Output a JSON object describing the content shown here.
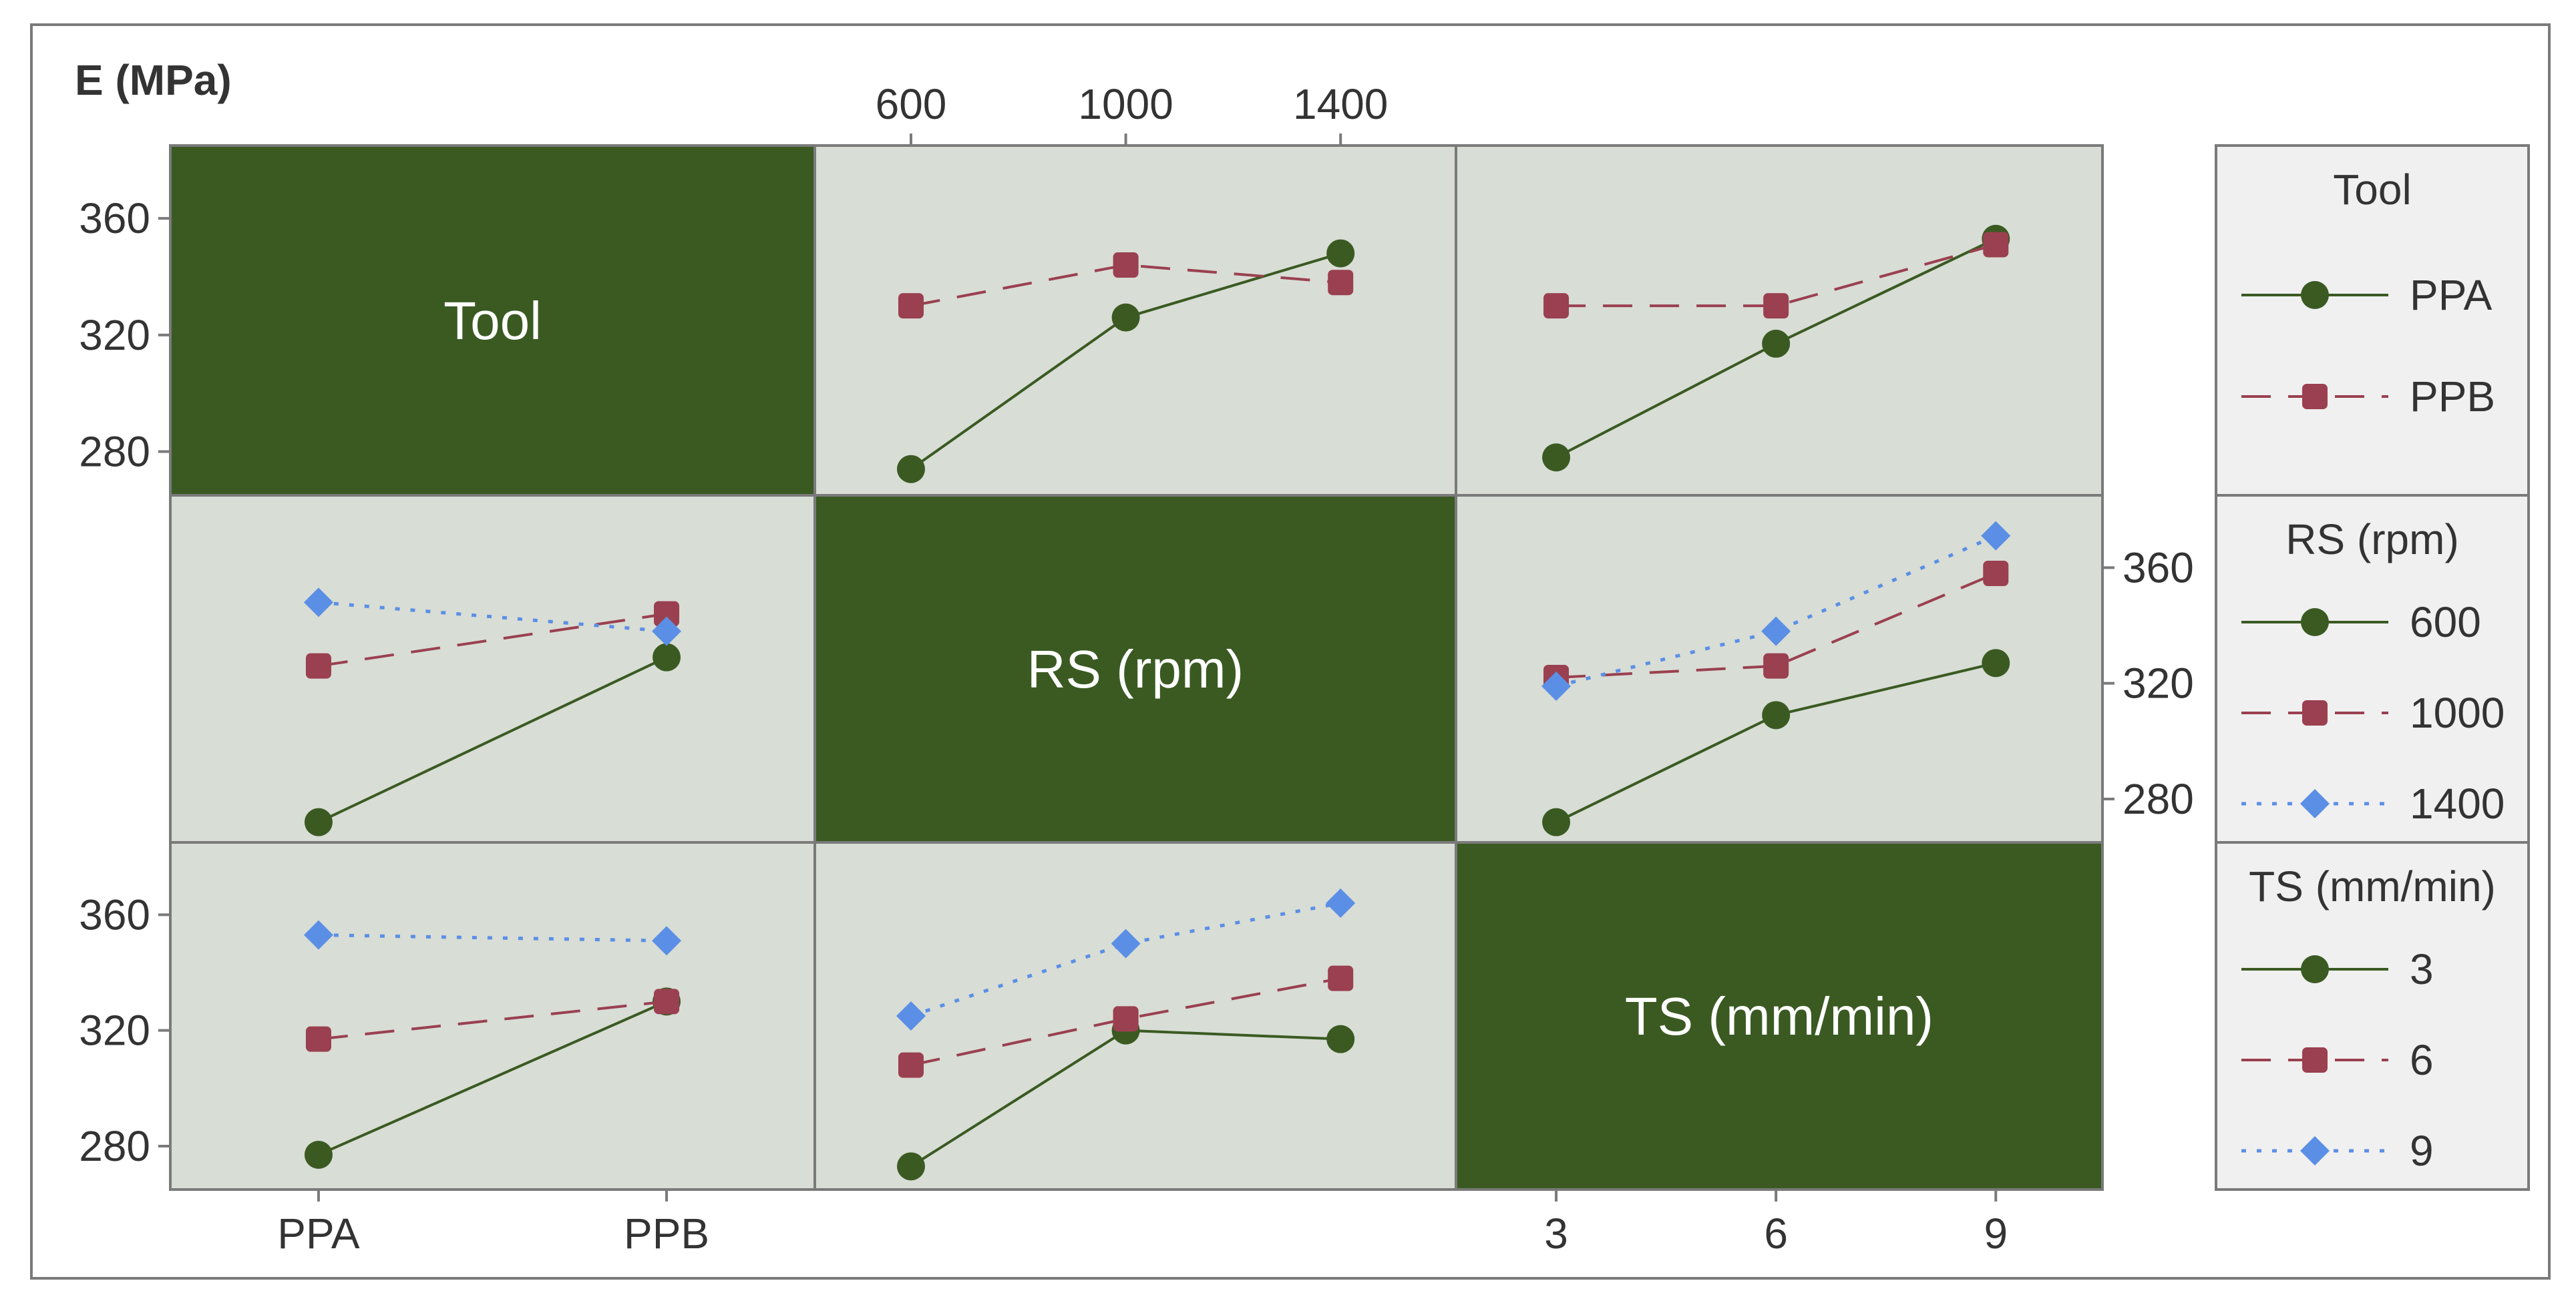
{
  "colors": {
    "frame": "#7a7a7a",
    "panel_bg": "#d8ddd5",
    "diag_bg": "#3a5a22",
    "diag_text": "#ffffff",
    "axis_text": "#333333",
    "legend_bg": "#f0f0f0",
    "series": [
      "#3a5a22",
      "#9a4050",
      "#5b8fe6"
    ]
  },
  "chart_data": {
    "type": "line",
    "title": "E (MPa)",
    "ylim": [
      265,
      385
    ],
    "y_ticks": [
      280,
      320,
      360
    ],
    "factors": [
      {
        "name": "Tool",
        "levels": [
          "PPA",
          "PPB"
        ],
        "tick_labels": [
          "PPA",
          "PPB"
        ]
      },
      {
        "name": "RS (rpm)",
        "levels": [
          600,
          1000,
          1400
        ],
        "tick_labels": [
          "600",
          "1000",
          "1400"
        ]
      },
      {
        "name": "TS (mm/min)",
        "levels": [
          3,
          6,
          9
        ],
        "tick_labels": [
          "3",
          "6",
          "9"
        ]
      }
    ],
    "panels": [
      {
        "row_factor": "Tool",
        "col_factor": "RS (rpm)",
        "x": [
          600,
          1000,
          1400
        ],
        "series": [
          {
            "name": "PPA",
            "values": [
              274,
              326,
              348
            ]
          },
          {
            "name": "PPB",
            "values": [
              330,
              344,
              338
            ]
          }
        ]
      },
      {
        "row_factor": "Tool",
        "col_factor": "TS (mm/min)",
        "x": [
          3,
          6,
          9
        ],
        "series": [
          {
            "name": "PPA",
            "values": [
              278,
              317,
              353
            ]
          },
          {
            "name": "PPB",
            "values": [
              330,
              330,
              351
            ]
          }
        ]
      },
      {
        "row_factor": "RS (rpm)",
        "col_factor": "Tool",
        "x": [
          "PPA",
          "PPB"
        ],
        "series": [
          {
            "name": "600",
            "values": [
              272,
              329
            ]
          },
          {
            "name": "1000",
            "values": [
              326,
              344
            ]
          },
          {
            "name": "1400",
            "values": [
              348,
              338
            ]
          }
        ]
      },
      {
        "row_factor": "RS (rpm)",
        "col_factor": "TS (mm/min)",
        "x": [
          3,
          6,
          9
        ],
        "series": [
          {
            "name": "600",
            "values": [
              272,
              309,
              327
            ]
          },
          {
            "name": "1000",
            "values": [
              322,
              326,
              358
            ]
          },
          {
            "name": "1400",
            "values": [
              319,
              338,
              371
            ]
          }
        ]
      },
      {
        "row_factor": "TS (mm/min)",
        "col_factor": "Tool",
        "x": [
          "PPA",
          "PPB"
        ],
        "series": [
          {
            "name": "3",
            "values": [
              277,
              330
            ]
          },
          {
            "name": "6",
            "values": [
              317,
              330
            ]
          },
          {
            "name": "9",
            "values": [
              353,
              351
            ]
          }
        ]
      },
      {
        "row_factor": "TS (mm/min)",
        "col_factor": "RS (rpm)",
        "x": [
          600,
          1000,
          1400
        ],
        "series": [
          {
            "name": "3",
            "values": [
              273,
              320,
              317
            ]
          },
          {
            "name": "6",
            "values": [
              308,
              324,
              338
            ]
          },
          {
            "name": "9",
            "values": [
              325,
              350,
              364
            ]
          }
        ]
      }
    ],
    "legends": [
      {
        "title": "Tool",
        "entries": [
          "PPA",
          "PPB"
        ]
      },
      {
        "title": "RS (rpm)",
        "entries": [
          "600",
          "1000",
          "1400"
        ]
      },
      {
        "title": "TS (mm/min)",
        "entries": [
          "3",
          "6",
          "9"
        ]
      }
    ]
  }
}
